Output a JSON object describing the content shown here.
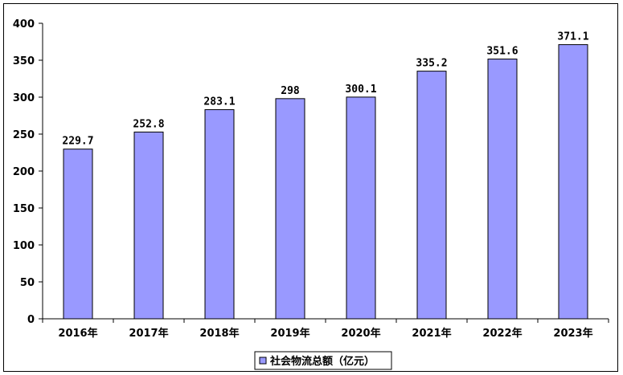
{
  "chart_data": {
    "type": "bar",
    "categories": [
      "2016年",
      "2017年",
      "2018年",
      "2019年",
      "2020年",
      "2021年",
      "2022年",
      "2023年"
    ],
    "series": [
      {
        "name": "社会物流总额（亿元）",
        "values": [
          229.7,
          252.8,
          283.1,
          298,
          300.1,
          335.2,
          351.6,
          371.1
        ],
        "labels": [
          "229.7",
          "252.8",
          "283.1",
          "298",
          "300.1",
          "335.2",
          "351.6",
          "371.1"
        ]
      }
    ],
    "ylim": [
      0,
      400
    ],
    "yticks": [
      0,
      50,
      100,
      150,
      200,
      250,
      300,
      350,
      400
    ],
    "grid": false,
    "legend_position": "bottom",
    "colors": {
      "bar": "#9999ff",
      "bar_stroke": "#000000",
      "axis": "#000000"
    }
  }
}
